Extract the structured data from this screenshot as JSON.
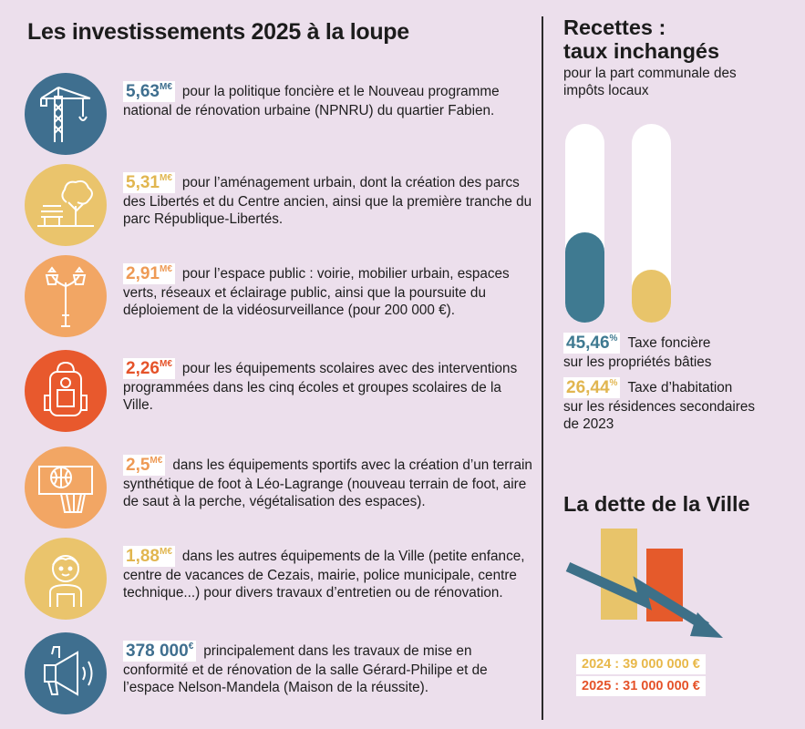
{
  "title": "Les investissements 2025 à la loupe",
  "investments": [
    {
      "amount": "5,63",
      "unit": "M€",
      "text": "pour la politique foncière et le Nouveau programme national de rénovation urbaine (NPNRU) du quartier Fabien.",
      "icon": "crane-icon",
      "color": "#3f6f8f",
      "amount_color": "#3f6f8f"
    },
    {
      "amount": "5,31",
      "unit": "M€",
      "text": "pour l’aménagement urbain, dont la création des parcs des Libertés et du Centre ancien, ainsi que la première tranche du parc République-Libertés.",
      "icon": "park-bench-tree-icon",
      "color": "#eac46c",
      "amount_color": "#e1b650"
    },
    {
      "amount": "2,91",
      "unit": "M€",
      "text": "pour l’espace public : voirie, mobilier urbain, espaces verts, réseaux et éclairage public, ainsi que la poursuite du déploiement de la vidéosurveillance (pour 200 000 €).",
      "icon": "street-lamp-icon",
      "color": "#f2a664",
      "amount_color": "#ee9a55"
    },
    {
      "amount": "2,26",
      "unit": "M€",
      "text": "pour les équipements scolaires avec des interventions programmées dans les cinq écoles et groupes scolaires de la Ville.",
      "icon": "school-backpack-icon",
      "color": "#e8592d",
      "amount_color": "#e5532a"
    },
    {
      "amount": "2,5",
      "unit": "M€",
      "text": "dans les équipements sportifs avec la création d’un terrain synthétique de foot à Léo-Lagrange (nouveau terrain de foot, aire de saut à la perche, végétalisation des espaces).",
      "icon": "basketball-hoop-icon",
      "color": "#f2a664",
      "amount_color": "#ee9a55"
    },
    {
      "amount": "1,88",
      "unit": "M€",
      "text": "dans les autres équipements de la Ville (petite enfance, centre de vacances de Cezais, mairie, police municipale, centre technique...) pour divers travaux d’entretien ou de rénovation.",
      "icon": "child-icon",
      "color": "#eac46c",
      "amount_color": "#e1b650"
    },
    {
      "amount": "378 000",
      "unit": "€",
      "text": "principalement dans les travaux de mise en conformité et de rénovation de la salle Gérard-Philipe et de l’espace Nelson-Mandela (Maison de la réussite).",
      "icon": "megaphone-icon",
      "color": "#3f6f8f",
      "amount_color": "#3f6f8f"
    }
  ],
  "recettes": {
    "title_line1": "Recettes :",
    "title_line2": "taux inchangés",
    "subtitle": "pour la part communale des impôts locaux",
    "rates": [
      {
        "value": "45,46",
        "unit": "%",
        "line1": "Taxe foncière",
        "line2": "sur les propriétés bâties",
        "line3": "",
        "fraction": 0.4546,
        "color": "#3f7a91"
      },
      {
        "value": "26,44",
        "unit": "%",
        "line1": "Taxe d’habitation",
        "line2": "sur les résidences secondaires",
        "line3": "de 2023",
        "fraction": 0.2644,
        "color": "#e8c46a"
      }
    ]
  },
  "dette": {
    "title": "La dette de la Ville",
    "items": [
      {
        "label": "2024 : 39 000 000 €",
        "value": 39000000,
        "color": "#e8c46a",
        "text_color": "#e8b84a"
      },
      {
        "label": "2025 : 31 000 000 €",
        "value": 31000000,
        "color": "#e55a2b",
        "text_color": "#e5532a"
      }
    ],
    "arrow_color": "#3d7088"
  }
}
